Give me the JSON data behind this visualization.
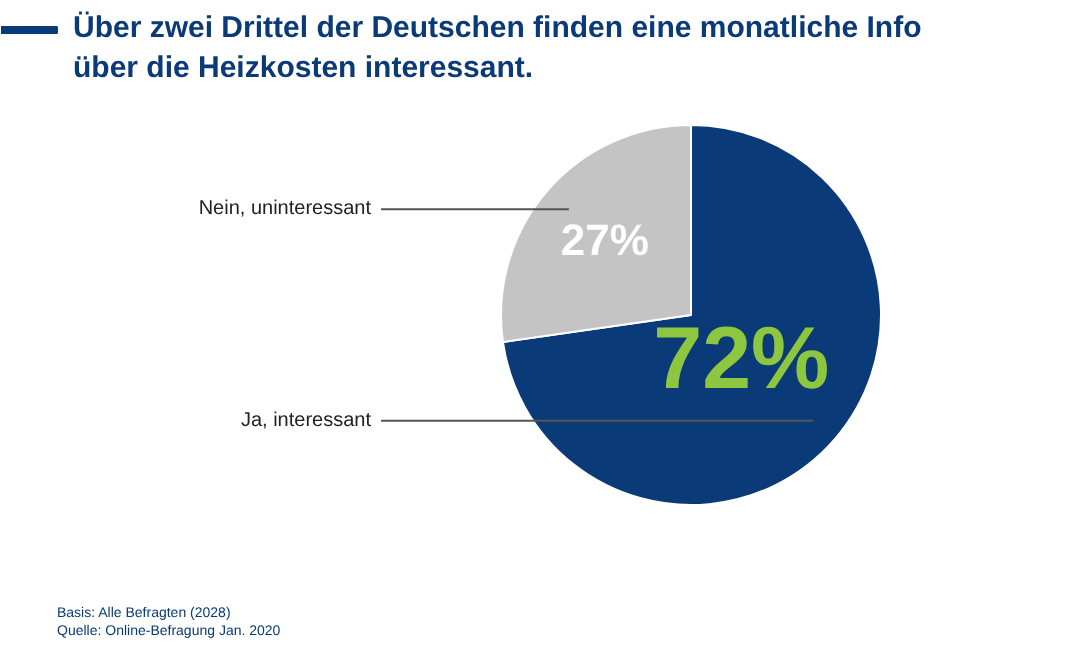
{
  "chart_data": {
    "type": "pie",
    "title": "Über zwei Drittel der Deutschen finden eine monatliche Info über die Heizkosten interessant.",
    "categories": [
      "Ja, interessant",
      "Nein, uninteressant"
    ],
    "values": [
      72,
      27
    ],
    "colors": [
      "#0b3a78",
      "#c4c4c4"
    ],
    "value_labels": [
      "72%",
      "27%"
    ],
    "annotations": [
      "Basis: Alle Befragten (2028)",
      "Quelle: Online-Befragung Jan. 2020"
    ]
  }
}
